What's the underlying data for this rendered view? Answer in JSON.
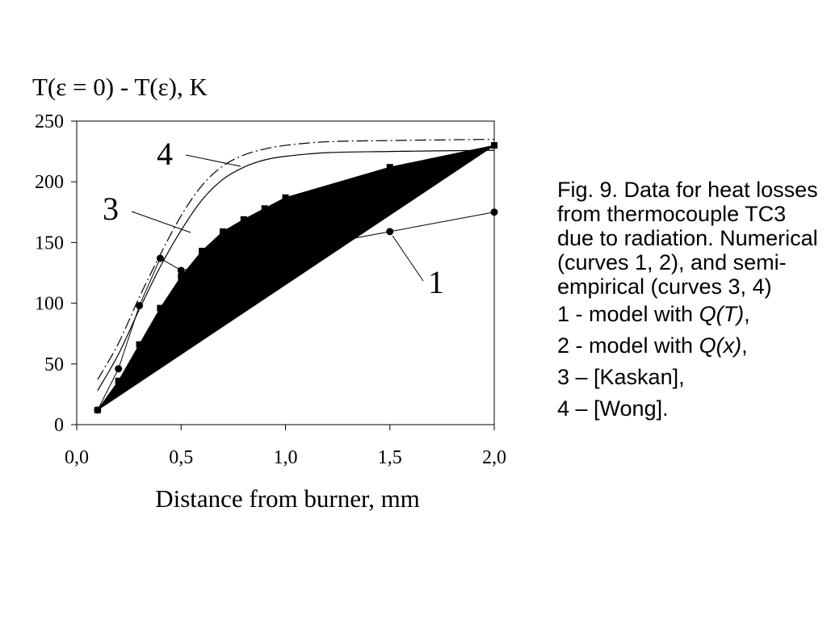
{
  "chart_data": {
    "type": "line",
    "ylabel": "T(ε = 0) - T(ε), K",
    "xlabel": "Distance from burner, mm",
    "xlim": [
      0,
      2
    ],
    "ylim": [
      0,
      250
    ],
    "x_ticks": [
      "0,0",
      "0,5",
      "1,0",
      "1,5",
      "2,0"
    ],
    "y_ticks": [
      "0",
      "50",
      "100",
      "150",
      "200",
      "250"
    ],
    "grid": false,
    "series": [
      {
        "name": "1",
        "style": "line-circle-markers",
        "x": [
          0.1,
          0.2,
          0.3,
          0.4,
          0.5,
          1.5,
          2.0
        ],
        "y": [
          12,
          46,
          98,
          137,
          127,
          159,
          175
        ]
      },
      {
        "name": "2",
        "style": "line-square-markers",
        "x": [
          0.1,
          0.2,
          0.3,
          0.4,
          0.5,
          0.6,
          0.7,
          0.8,
          0.9,
          1.0,
          1.5,
          2.0
        ],
        "y": [
          12,
          36,
          66,
          96,
          122,
          143,
          159,
          169,
          178,
          187,
          212,
          230
        ]
      },
      {
        "name": "3",
        "style": "solid",
        "x": [
          0.1,
          0.2,
          0.3,
          0.4,
          0.5,
          0.6,
          0.7,
          0.8,
          0.9,
          1.0,
          1.2,
          1.5,
          2.0
        ],
        "y": [
          28,
          58,
          95,
          130,
          160,
          185,
          202,
          212,
          218,
          221,
          224,
          225,
          226
        ]
      },
      {
        "name": "4",
        "style": "dash-dot",
        "x": [
          0.1,
          0.2,
          0.3,
          0.4,
          0.5,
          0.6,
          0.7,
          0.8,
          0.9,
          1.0,
          1.2,
          1.5,
          2.0
        ],
        "y": [
          37,
          67,
          105,
          140,
          172,
          197,
          213,
          222,
          227,
          230,
          233,
          234,
          235
        ]
      }
    ],
    "filled_region": {
      "note": "shaded area between curve 2 and the straight line",
      "color": "#000000"
    },
    "annotations": [
      {
        "text": "4",
        "point_to_series": "4"
      },
      {
        "text": "3",
        "point_to_series": "3"
      },
      {
        "text": "1",
        "point_to_series": "1"
      }
    ]
  },
  "caption": {
    "figure_text": "Fig. 9. Data for heat losses from thermocouple TC3 due to radiation. Numerical (curves 1, 2), and semi-empirical (curves 3, 4)",
    "legend": [
      {
        "prefix": "1 - model with ",
        "emph": "Q(T)",
        "suffix": ","
      },
      {
        "prefix": "2 - model with ",
        "emph": "Q(x)",
        "suffix": ","
      },
      {
        "prefix": "3 – [Kaskan],",
        "emph": "",
        "suffix": ""
      },
      {
        "prefix": "4 – [Wong].",
        "emph": "",
        "suffix": ""
      }
    ]
  }
}
